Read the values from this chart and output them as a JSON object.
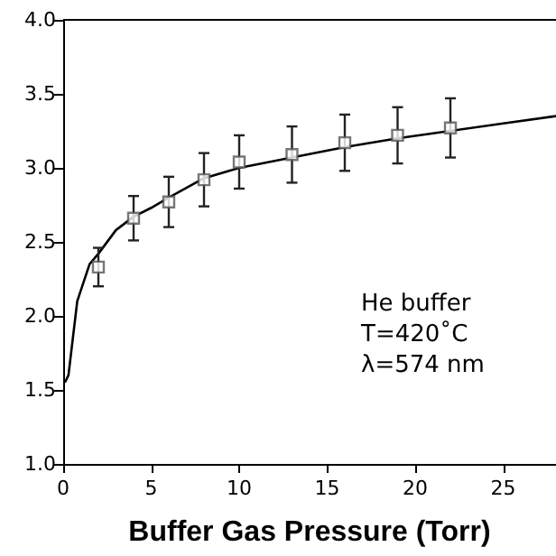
{
  "chart_data": {
    "type": "scatter",
    "xlabel": "Buffer Gas Pressure (Torr)",
    "annotations": [
      "He buffer",
      "T=420˚C",
      "λ=574 nm"
    ],
    "xlim": [
      0,
      28
    ],
    "xticks": [
      0,
      5,
      10,
      15,
      20,
      25
    ],
    "ylim": [
      1,
      4
    ],
    "yticks": [
      {
        "value": 1,
        "label": "1.0"
      },
      {
        "value": 1.5,
        "label": "1.5"
      },
      {
        "value": 2,
        "label": "2.0"
      },
      {
        "value": 2.5,
        "label": "2.5"
      },
      {
        "value": 3,
        "label": "3.0"
      },
      {
        "value": 3.5,
        "label": "3.5"
      },
      {
        "value": 4,
        "label": "4.0"
      }
    ],
    "grid": false,
    "marker": "square",
    "series": [
      {
        "color": "#555555",
        "x": [
          2,
          4,
          6,
          8,
          10,
          13,
          16,
          19,
          22
        ],
        "values": [
          2.33,
          2.66,
          2.77,
          2.92,
          3.04,
          3.09,
          3.17,
          3.22,
          3.27
        ],
        "errors": [
          0.13,
          0.15,
          0.17,
          0.18,
          0.18,
          0.19,
          0.19,
          0.19,
          0.2
        ]
      },
      {
        "type": "line",
        "color": "#000000",
        "marker": "none",
        "x": [
          0.1,
          0.3,
          0.8,
          1.5,
          2,
          3,
          4,
          5,
          6,
          8,
          10,
          13,
          16,
          19,
          22,
          25,
          28
        ],
        "values": [
          1.55,
          1.6,
          2.1,
          2.35,
          2.42,
          2.58,
          2.67,
          2.73,
          2.8,
          2.93,
          3.0,
          3.07,
          3.14,
          3.2,
          3.25,
          3.3,
          3.35
        ]
      }
    ]
  }
}
